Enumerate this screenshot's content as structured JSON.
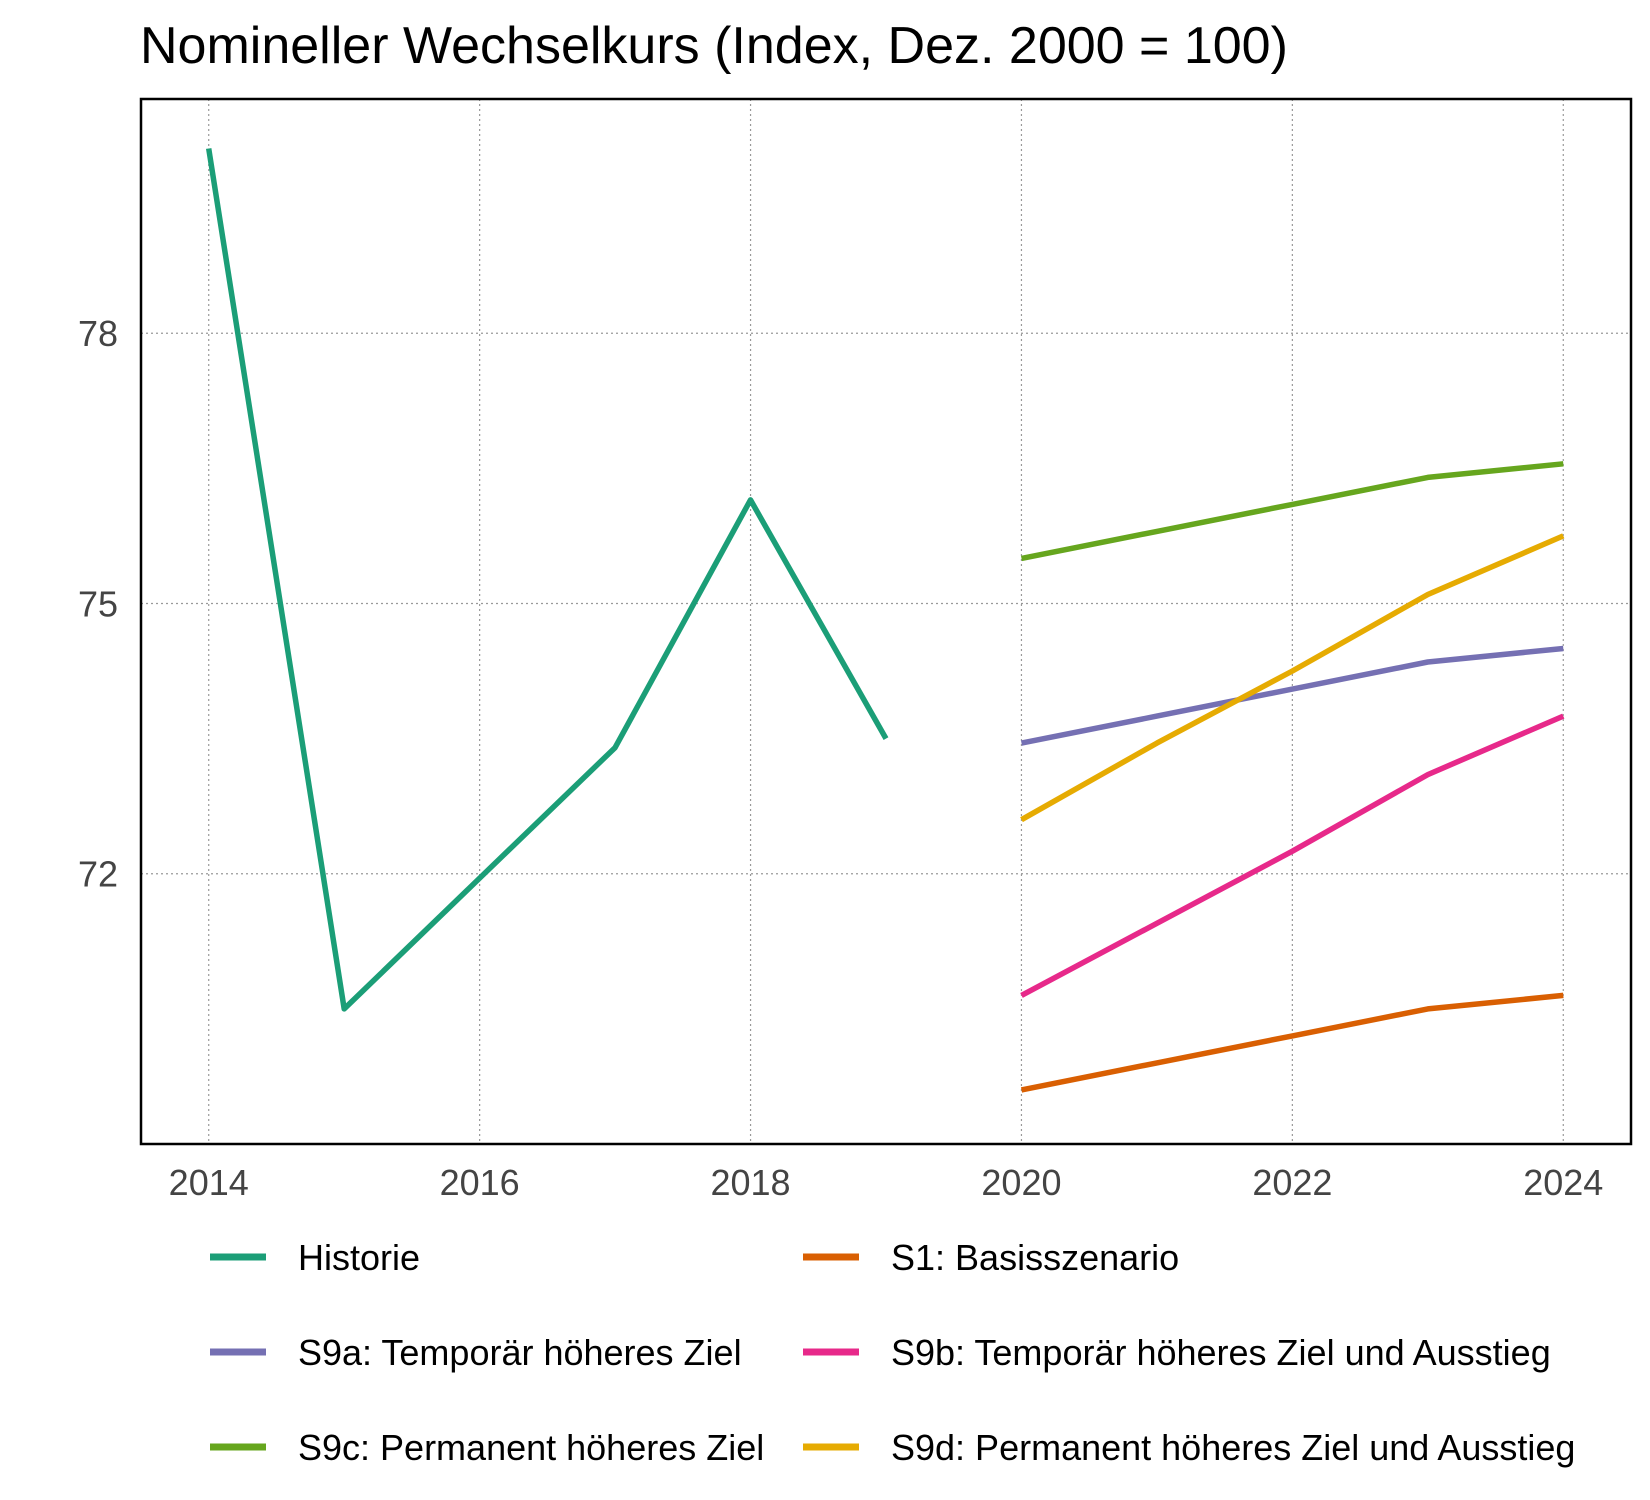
{
  "chart_data": {
    "type": "line",
    "title": "Nomineller Wechselkurs (Index, Dez. 2000 = 100)",
    "xlabel": "",
    "ylabel": "",
    "xlim": [
      2013.5,
      2024.5
    ],
    "ylim": [
      69.0,
      80.6
    ],
    "x_ticks": [
      2014,
      2016,
      2018,
      2020,
      2022,
      2024
    ],
    "x_tick_labels": [
      "2014",
      "2016",
      "2018",
      "2020",
      "2022",
      "2024"
    ],
    "y_ticks": [
      72,
      75,
      78
    ],
    "y_tick_labels": [
      "72",
      "75",
      "78"
    ],
    "grid": true,
    "legend_position": "bottom",
    "series": [
      {
        "name": "Historie",
        "color": "#1b9e77",
        "x": [
          2014,
          2015,
          2016,
          2017,
          2018,
          2019
        ],
        "values": [
          80.05,
          70.5,
          71.95,
          73.4,
          76.15,
          73.5
        ]
      },
      {
        "name": "S1: Basisszenario",
        "color": "#d95f02",
        "x": [
          2020,
          2021,
          2022,
          2023,
          2024
        ],
        "values": [
          69.6,
          69.9,
          70.2,
          70.5,
          70.65
        ]
      },
      {
        "name": "S9a: Temporär höheres Ziel",
        "color": "#7570b3",
        "x": [
          2020,
          2021,
          2022,
          2023,
          2024
        ],
        "values": [
          73.45,
          73.75,
          74.05,
          74.35,
          74.5
        ]
      },
      {
        "name": "S9b: Temporär höheres Ziel und Ausstieg",
        "color": "#e7298a",
        "x": [
          2020,
          2021,
          2022,
          2023,
          2024
        ],
        "values": [
          70.65,
          71.45,
          72.25,
          73.1,
          73.75
        ]
      },
      {
        "name": "S9c: Permanent höheres Ziel",
        "color": "#66a61e",
        "x": [
          2020,
          2021,
          2022,
          2023,
          2024
        ],
        "values": [
          75.5,
          75.8,
          76.1,
          76.4,
          76.55
        ]
      },
      {
        "name": "S9d: Permanent höheres Ziel und Ausstieg",
        "color": "#e6ab02",
        "x": [
          2020,
          2021,
          2022,
          2023,
          2024
        ],
        "values": [
          72.6,
          73.45,
          74.25,
          75.1,
          75.75
        ]
      }
    ]
  }
}
